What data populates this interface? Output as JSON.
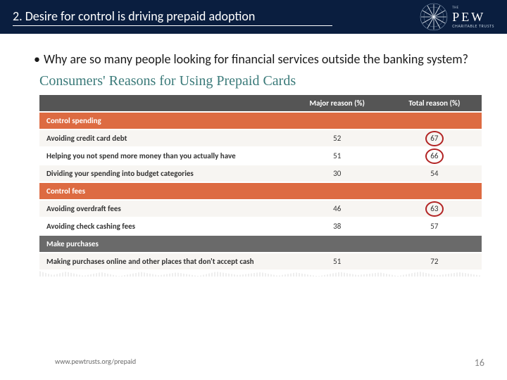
{
  "header": {
    "title": "2. Desire for control is driving prepaid adoption",
    "logo_bg": "#0a1e3f",
    "pew_the": "THE",
    "pew_main": "PEW",
    "pew_sub": "CHARITABLE TRUSTS"
  },
  "bullet": {
    "marker": "•",
    "text": "Why are so many people looking for financial services outside the banking system?"
  },
  "table": {
    "title": "Consumers' Reasons for Using Prepaid Cards",
    "title_color": "#3a7a79",
    "columns": [
      "",
      "Major reason (%)",
      "Total reason (%)"
    ],
    "header_bg": "#555555",
    "section_bg": "#dd6b42",
    "section_gray_bg": "#6a6a6a",
    "row_bg": "#f7f5f2",
    "row_alt_bg": "#ffffff",
    "text_color": "#333333",
    "circle_color": "#b22323",
    "rows": [
      {
        "type": "section",
        "label": "Control spending"
      },
      {
        "type": "data",
        "label": "Avoiding credit card debt",
        "major": "52",
        "total": "67",
        "circle": true
      },
      {
        "type": "data",
        "label": "Helping you not spend more money than you actually have",
        "major": "51",
        "total": "66",
        "circle": true
      },
      {
        "type": "data",
        "label": "Dividing your spending into budget categories",
        "major": "30",
        "total": "54",
        "circle": false
      },
      {
        "type": "section",
        "label": "Control fees"
      },
      {
        "type": "data",
        "label": "Avoiding overdraft fees",
        "major": "46",
        "total": "63",
        "circle": true
      },
      {
        "type": "data",
        "label": "Avoiding check cashing fees",
        "major": "38",
        "total": "57",
        "circle": false
      },
      {
        "type": "section_gray",
        "label": "Make purchases"
      },
      {
        "type": "data",
        "label": "Making purchases online and other places that don't accept cash",
        "major": "51",
        "total": "72",
        "circle": false
      }
    ]
  },
  "footer": {
    "url": "www.pewtrusts.org/prepaid",
    "page": "16"
  }
}
